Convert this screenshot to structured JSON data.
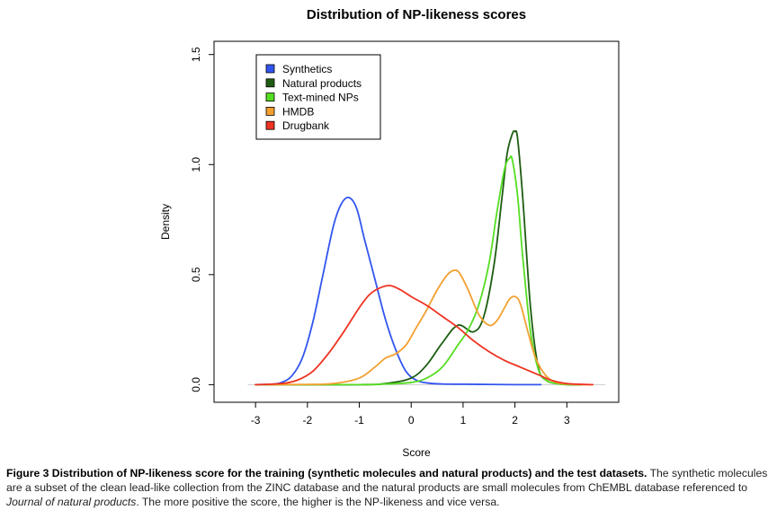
{
  "chart_data": {
    "type": "line",
    "title": "Distribution of NP-likeness scores",
    "xlabel": "Score",
    "ylabel": "Density",
    "xlim": [
      -3.8,
      4.0
    ],
    "ylim": [
      -0.08,
      1.56
    ],
    "x_ticks": [
      "-3",
      "-2",
      "-1",
      "0",
      "1",
      "2",
      "3"
    ],
    "x_tick_values": [
      -3,
      -2,
      -1,
      0,
      1,
      2,
      3
    ],
    "y_ticks": [
      "0.0",
      "0.5",
      "1.0",
      "1.5"
    ],
    "y_tick_values": [
      0,
      0.5,
      1.0,
      1.5
    ],
    "grid": false,
    "legend_position": "top-left",
    "series": [
      {
        "name": "Synthetics",
        "color": "#3355ee",
        "x": [
          -3.0,
          -2.7,
          -2.5,
          -2.3,
          -2.1,
          -1.9,
          -1.7,
          -1.5,
          -1.35,
          -1.2,
          -1.05,
          -0.9,
          -0.7,
          -0.5,
          -0.3,
          -0.1,
          0.1,
          0.3,
          0.6,
          1.0,
          1.5,
          2.0,
          2.5
        ],
        "y": [
          0.0,
          0.002,
          0.01,
          0.04,
          0.12,
          0.28,
          0.5,
          0.72,
          0.82,
          0.85,
          0.8,
          0.66,
          0.48,
          0.3,
          0.16,
          0.06,
          0.02,
          0.008,
          0.003,
          0.002,
          0.001,
          0.0,
          0.0
        ]
      },
      {
        "name": "Natural products",
        "color": "#1e5c12",
        "x": [
          -3.0,
          -1.0,
          -0.5,
          0.0,
          0.3,
          0.6,
          0.9,
          1.2,
          1.4,
          1.6,
          1.75,
          1.85,
          1.95,
          2.0,
          2.05,
          2.15,
          2.3,
          2.45,
          2.6,
          2.8,
          3.0,
          3.3
        ],
        "y": [
          0.0,
          0.0,
          0.005,
          0.03,
          0.09,
          0.19,
          0.27,
          0.24,
          0.31,
          0.55,
          0.85,
          1.05,
          1.14,
          1.15,
          1.12,
          0.85,
          0.35,
          0.08,
          0.02,
          0.005,
          0.0,
          0.0
        ]
      },
      {
        "name": "Text-mined NPs",
        "color": "#55dd22",
        "x": [
          -3.0,
          -1.0,
          -0.5,
          0.0,
          0.3,
          0.6,
          0.9,
          1.1,
          1.3,
          1.5,
          1.65,
          1.8,
          1.9,
          1.95,
          2.05,
          2.15,
          2.3,
          2.45,
          2.6,
          2.8,
          3.0,
          3.3
        ],
        "y": [
          0.0,
          0.0,
          0.003,
          0.01,
          0.03,
          0.08,
          0.18,
          0.25,
          0.36,
          0.55,
          0.78,
          0.98,
          1.03,
          1.02,
          0.86,
          0.58,
          0.24,
          0.07,
          0.02,
          0.005,
          0.0,
          0.0
        ]
      },
      {
        "name": "HMDB",
        "color": "#f2a030",
        "x": [
          -3.0,
          -2.0,
          -1.5,
          -1.0,
          -0.7,
          -0.5,
          -0.3,
          -0.1,
          0.1,
          0.3,
          0.5,
          0.7,
          0.85,
          0.95,
          1.1,
          1.3,
          1.5,
          1.65,
          1.8,
          1.9,
          2.0,
          2.1,
          2.25,
          2.4,
          2.6,
          2.8,
          3.0,
          3.3,
          3.5
        ],
        "y": [
          0.0,
          0.001,
          0.005,
          0.03,
          0.08,
          0.12,
          0.14,
          0.18,
          0.26,
          0.34,
          0.43,
          0.5,
          0.52,
          0.5,
          0.43,
          0.32,
          0.27,
          0.29,
          0.35,
          0.39,
          0.4,
          0.37,
          0.24,
          0.12,
          0.04,
          0.01,
          0.003,
          0.0,
          0.0
        ]
      },
      {
        "name": "Drugbank",
        "color": "#ee3322",
        "x": [
          -3.0,
          -2.5,
          -2.2,
          -1.9,
          -1.6,
          -1.3,
          -1.0,
          -0.8,
          -0.6,
          -0.4,
          -0.2,
          0.0,
          0.3,
          0.6,
          0.9,
          1.2,
          1.5,
          1.8,
          2.1,
          2.3,
          2.5,
          2.7,
          3.0,
          3.5
        ],
        "y": [
          0.0,
          0.005,
          0.02,
          0.06,
          0.14,
          0.24,
          0.35,
          0.41,
          0.44,
          0.45,
          0.43,
          0.4,
          0.36,
          0.31,
          0.26,
          0.2,
          0.15,
          0.11,
          0.08,
          0.06,
          0.04,
          0.02,
          0.005,
          0.0
        ]
      }
    ]
  },
  "caption": {
    "label": "Figure 3 Distribution of NP-likeness score for the training (synthetic molecules and natural products) and the test datasets.",
    "text_1": " The synthetic molecules are a subset of the clean lead-like collection from the ZINC database and the natural products are small molecules from ChEMBL database referenced to ",
    "journal": "Journal of natural products",
    "text_2": ". The more positive the score, the higher is the NP-likeness and vice versa."
  }
}
